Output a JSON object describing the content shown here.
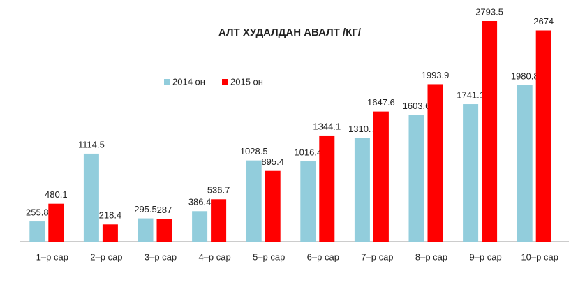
{
  "chart_data": {
    "type": "bar",
    "title": "АЛТ ХУДАЛДАН АВАЛТ /КГ/",
    "categories": [
      "1–р сар",
      "2–р сар",
      "3–р сар",
      "4–р сар",
      "5–р сар",
      "6–р сар",
      "7–р сар",
      "8–р сар",
      "9–р сар",
      "10–р сар"
    ],
    "series": [
      {
        "name": "2014 он",
        "color": "#92cddc",
        "values": [
          255.8,
          1114.5,
          295.5,
          386.4,
          1028.5,
          1016.4,
          1310.7,
          1603.6,
          1741.1,
          1980.8
        ]
      },
      {
        "name": "2015 он",
        "color": "#ff0000",
        "values": [
          480.1,
          218.4,
          287,
          536.7,
          895.4,
          1344.1,
          1647.6,
          1993.9,
          2793.5,
          2674
        ]
      }
    ],
    "legend": "top-left"
  }
}
